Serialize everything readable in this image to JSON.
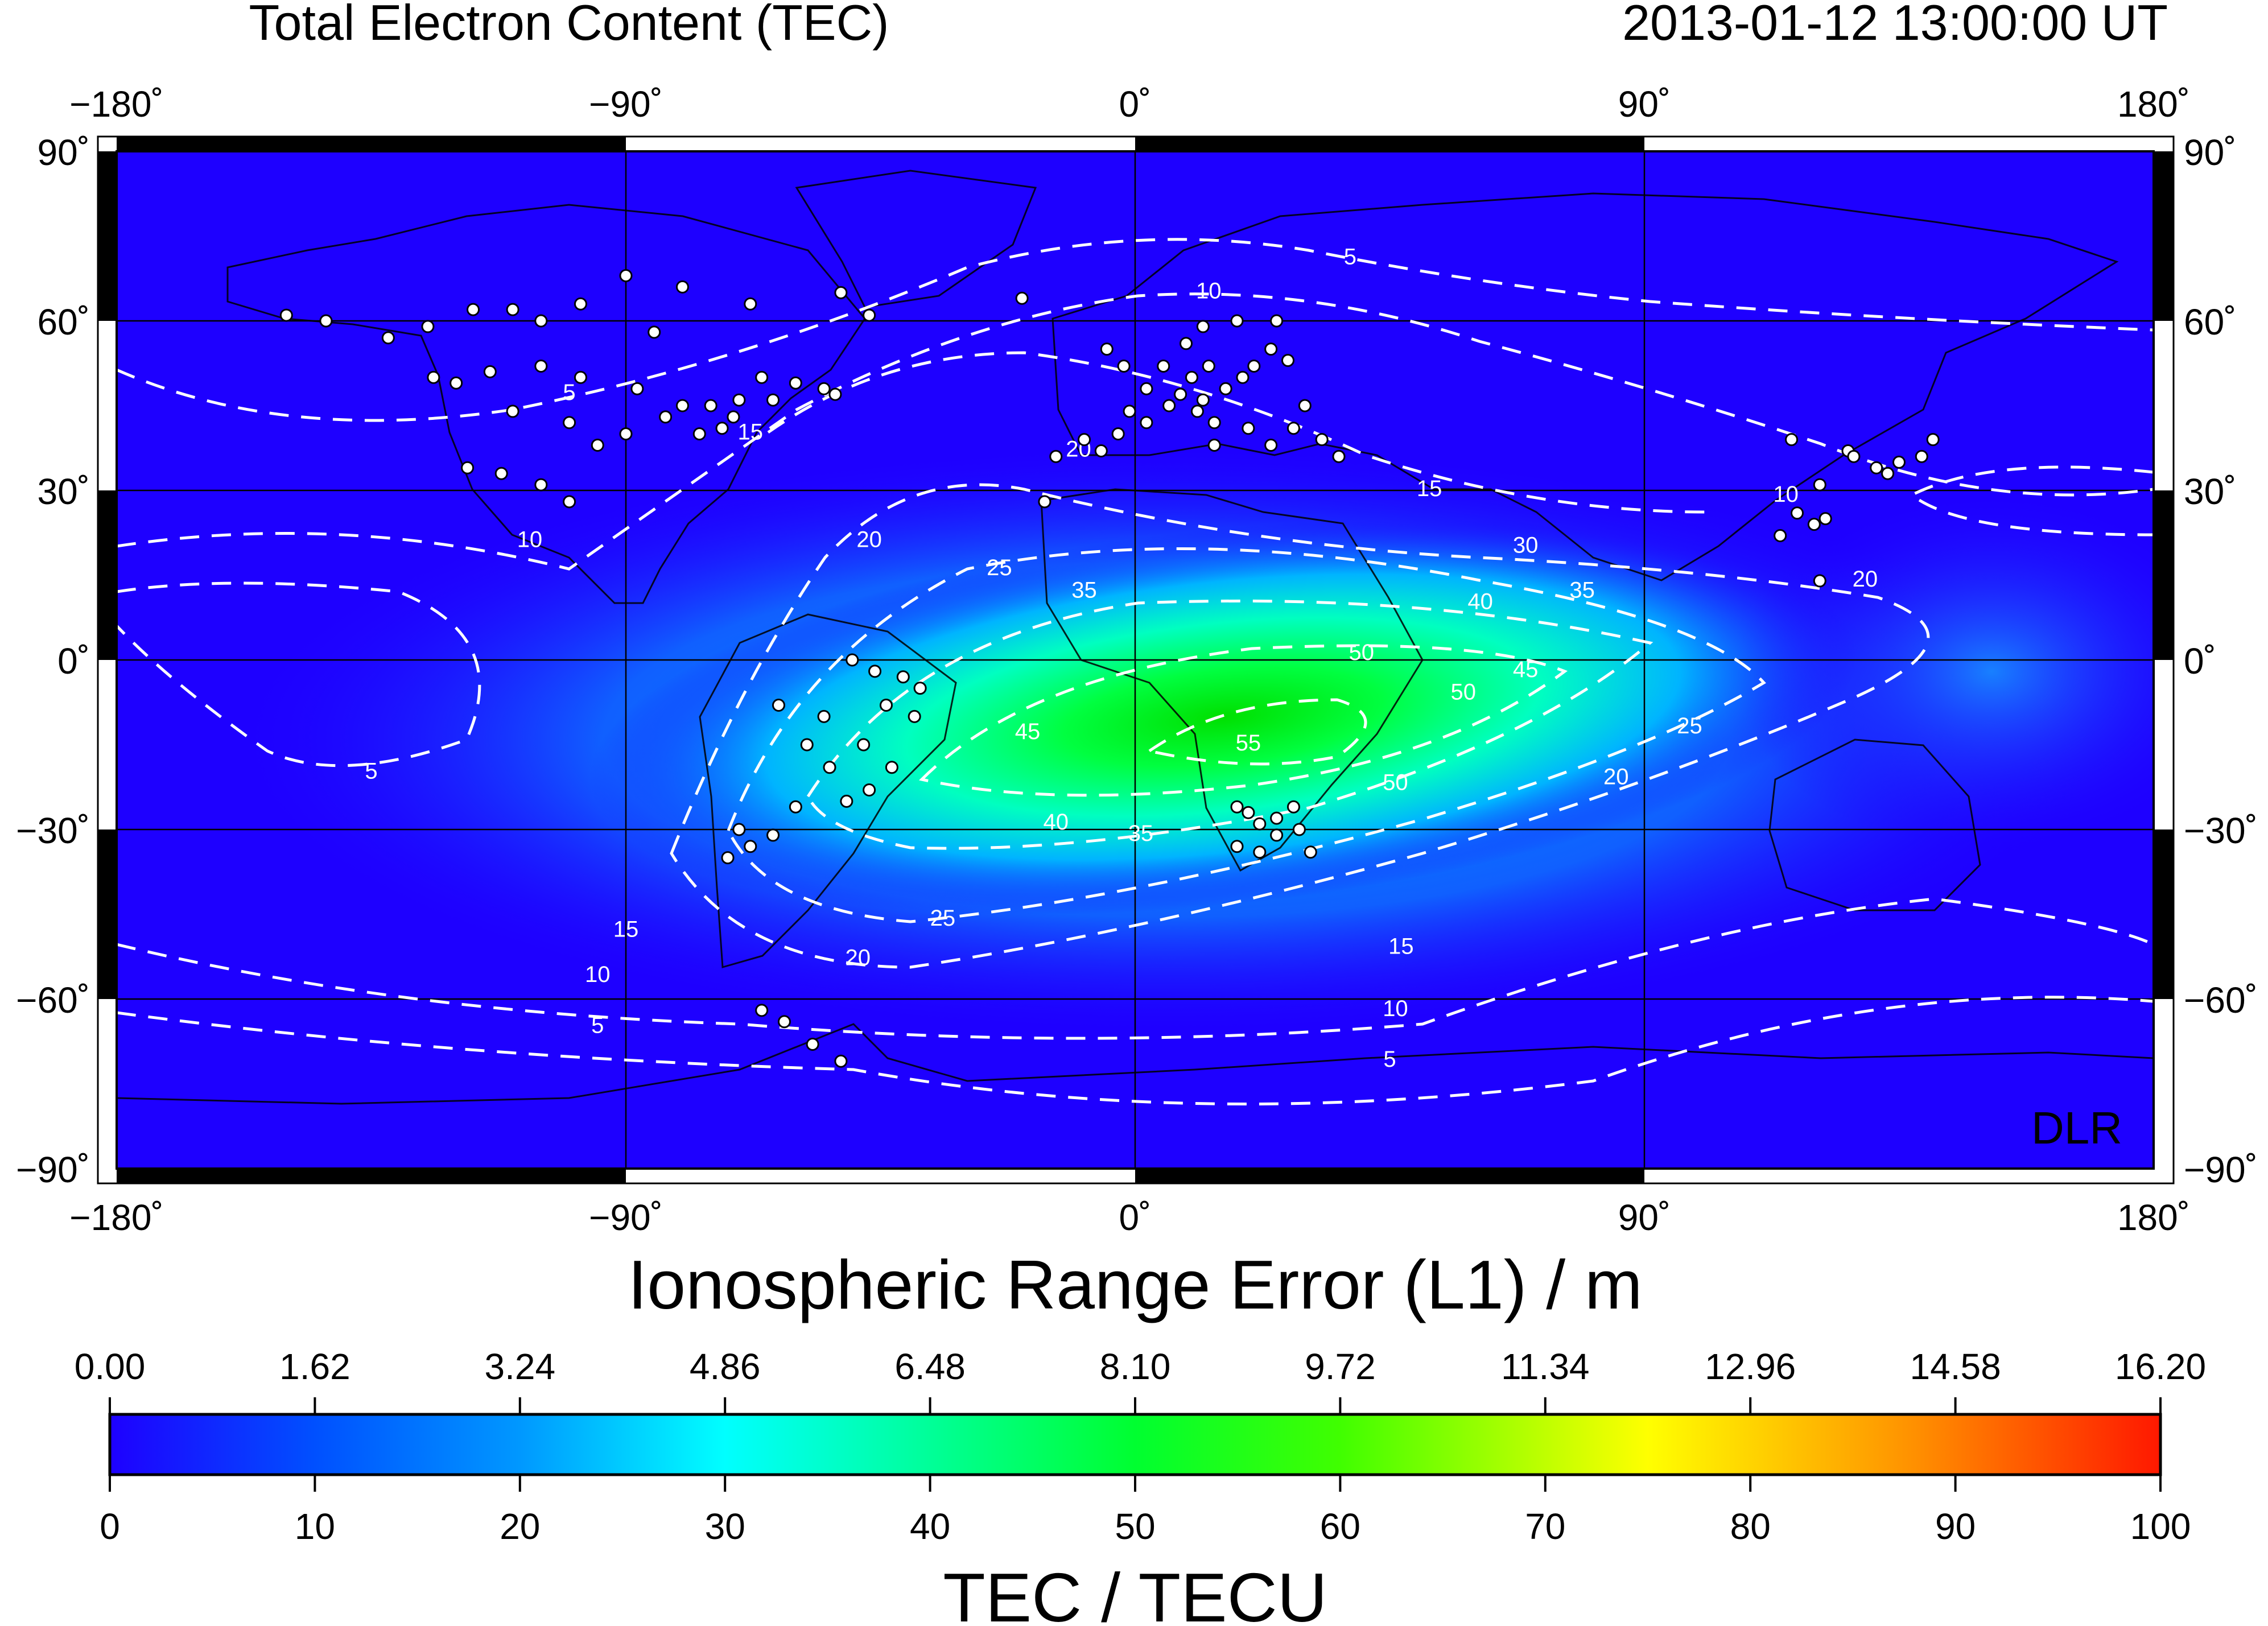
{
  "header": {
    "title": "Total Electron Content (TEC)",
    "timestamp": "2013-01-12  13:00:00 UT"
  },
  "map": {
    "projection": "equirectangular",
    "lon_range": [
      -180,
      180
    ],
    "lat_range": [
      -90,
      90
    ],
    "grid": true,
    "lon_ticks": [
      "−180˚",
      "−90˚",
      "0˚",
      "90˚",
      "180˚"
    ],
    "lat_ticks": [
      "90˚",
      "60˚",
      "30˚",
      "0˚",
      "−30˚",
      "−60˚",
      "−90˚"
    ],
    "credit": "DLR",
    "contour_labels": [
      "5",
      "10",
      "15",
      "20",
      "25",
      "30",
      "35",
      "40",
      "45",
      "50",
      "55"
    ],
    "contours": [
      {
        "level": 5,
        "label_lonlat": [
          [
            -100,
            46
          ],
          [
            -135,
            -21
          ],
          [
            -95,
            -66
          ],
          [
            45,
            -72
          ],
          [
            38,
            70
          ]
        ]
      },
      {
        "level": 10,
        "label_lonlat": [
          [
            -107,
            20
          ],
          [
            -95,
            -57
          ],
          [
            46,
            -63
          ],
          [
            115,
            28
          ],
          [
            13,
            64
          ]
        ]
      },
      {
        "level": 15,
        "label_lonlat": [
          [
            -68,
            39
          ],
          [
            -90,
            -49
          ],
          [
            47,
            -52
          ],
          [
            52,
            29
          ]
        ]
      },
      {
        "level": 20,
        "label_lonlat": [
          [
            -47,
            20
          ],
          [
            -49,
            -54
          ],
          [
            -10,
            36
          ],
          [
            85,
            -22
          ],
          [
            129,
            13
          ]
        ]
      },
      {
        "level": 25,
        "label_lonlat": [
          [
            -24,
            15
          ],
          [
            -34,
            -47
          ],
          [
            98,
            -13
          ]
        ]
      },
      {
        "level": 30,
        "label_lonlat": [
          [
            69,
            19
          ]
        ]
      },
      {
        "level": 35,
        "label_lonlat": [
          [
            -9,
            11
          ],
          [
            1,
            -32
          ],
          [
            79,
            11
          ]
        ]
      },
      {
        "level": 40,
        "label_lonlat": [
          [
            -14,
            -30
          ],
          [
            61,
            9
          ]
        ]
      },
      {
        "level": 45,
        "label_lonlat": [
          [
            -19,
            -14
          ],
          [
            69,
            -3
          ]
        ]
      },
      {
        "level": 50,
        "label_lonlat": [
          [
            40,
            0
          ],
          [
            58,
            -7
          ],
          [
            46,
            -23
          ]
        ]
      },
      {
        "level": 55,
        "label_lonlat": [
          [
            20,
            -16
          ]
        ]
      }
    ],
    "stations_lonlat": [
      [
        -150,
        61
      ],
      [
        -143,
        60
      ],
      [
        -132,
        57
      ],
      [
        -125,
        59
      ],
      [
        -117,
        62
      ],
      [
        -110,
        62
      ],
      [
        -105,
        60
      ],
      [
        -98,
        63
      ],
      [
        -90,
        68
      ],
      [
        -80,
        66
      ],
      [
        -124,
        50
      ],
      [
        -120,
        49
      ],
      [
        -114,
        51
      ],
      [
        -105,
        52
      ],
      [
        -98,
        50
      ],
      [
        -88,
        48
      ],
      [
        -80,
        45
      ],
      [
        -75,
        45
      ],
      [
        -70,
        46
      ],
      [
        -64,
        46
      ],
      [
        -83,
        43
      ],
      [
        -77,
        40
      ],
      [
        -90,
        40
      ],
      [
        -100,
        42
      ],
      [
        -110,
        44
      ],
      [
        -118,
        34
      ],
      [
        -112,
        33
      ],
      [
        -105,
        31
      ],
      [
        -100,
        28
      ],
      [
        -95,
        38
      ],
      [
        -73,
        41
      ],
      [
        -71,
        43
      ],
      [
        -66,
        50
      ],
      [
        -60,
        49
      ],
      [
        -55,
        48
      ],
      [
        -53,
        47
      ],
      [
        -47,
        61
      ],
      [
        -52,
        65
      ],
      [
        -68,
        63
      ],
      [
        -85,
        58
      ],
      [
        -3,
        40
      ],
      [
        -6,
        37
      ],
      [
        -9,
        39
      ],
      [
        2,
        48
      ],
      [
        5,
        52
      ],
      [
        10,
        50
      ],
      [
        13,
        52
      ],
      [
        16,
        48
      ],
      [
        19,
        50
      ],
      [
        21,
        52
      ],
      [
        24,
        55
      ],
      [
        27,
        53
      ],
      [
        11,
        44
      ],
      [
        14,
        42
      ],
      [
        20,
        41
      ],
      [
        24,
        38
      ],
      [
        28,
        41
      ],
      [
        33,
        39
      ],
      [
        36,
        36
      ],
      [
        30,
        45
      ],
      [
        -2,
        52
      ],
      [
        -5,
        55
      ],
      [
        8,
        47
      ],
      [
        12,
        46
      ],
      [
        2,
        42
      ],
      [
        9,
        56
      ],
      [
        12,
        59
      ],
      [
        18,
        60
      ],
      [
        25,
        60
      ],
      [
        -16,
        28
      ],
      [
        -14,
        36
      ],
      [
        -20,
        64
      ],
      [
        14,
        38
      ],
      [
        6,
        45
      ],
      [
        -1,
        44
      ],
      [
        -50,
        0
      ],
      [
        -46,
        -2
      ],
      [
        -41,
        -3
      ],
      [
        -44,
        -8
      ],
      [
        -39,
        -10
      ],
      [
        -48,
        -15
      ],
      [
        -43,
        -19
      ],
      [
        -47,
        -23
      ],
      [
        -51,
        -25
      ],
      [
        -54,
        -19
      ],
      [
        -58,
        -15
      ],
      [
        -60,
        -26
      ],
      [
        -64,
        -31
      ],
      [
        -70,
        -30
      ],
      [
        -68,
        -33
      ],
      [
        -72,
        -35
      ],
      [
        -55,
        -10
      ],
      [
        -63,
        -8
      ],
      [
        -38,
        -5
      ],
      [
        18,
        -26
      ],
      [
        22,
        -29
      ],
      [
        25,
        -31
      ],
      [
        28,
        -26
      ],
      [
        18,
        -33
      ],
      [
        22,
        -34
      ],
      [
        29,
        -30
      ],
      [
        31,
        -34
      ],
      [
        25,
        -28
      ],
      [
        20,
        -27
      ],
      [
        121,
        31
      ],
      [
        117,
        26
      ],
      [
        114,
        22
      ],
      [
        120,
        24
      ],
      [
        126,
        37
      ],
      [
        127,
        36
      ],
      [
        131,
        34
      ],
      [
        135,
        35
      ],
      [
        139,
        36
      ],
      [
        141,
        39
      ],
      [
        133,
        33
      ],
      [
        116,
        39
      ],
      [
        122,
        25
      ],
      [
        121,
        14
      ],
      [
        -66,
        -62
      ],
      [
        -62,
        -64
      ],
      [
        -57,
        -68
      ],
      [
        -52,
        -71
      ]
    ]
  },
  "colorbar": {
    "title_top": "Ionospheric Range Error (L1) / m",
    "title_bottom": "TEC / TECU",
    "range_error_ticks": [
      "0.00",
      "1.62",
      "3.24",
      "4.86",
      "6.48",
      "8.10",
      "9.72",
      "11.34",
      "12.96",
      "14.58",
      "16.20"
    ],
    "tec_ticks": [
      "0",
      "10",
      "20",
      "30",
      "40",
      "50",
      "60",
      "70",
      "80",
      "90",
      "100"
    ],
    "tec_range": [
      0,
      100
    ],
    "colors": [
      "#1e00ff",
      "#0078ff",
      "#00ffff",
      "#00ff78",
      "#00ff00",
      "#78ff00",
      "#ffff00",
      "#ff8c00",
      "#ff0000"
    ]
  }
}
